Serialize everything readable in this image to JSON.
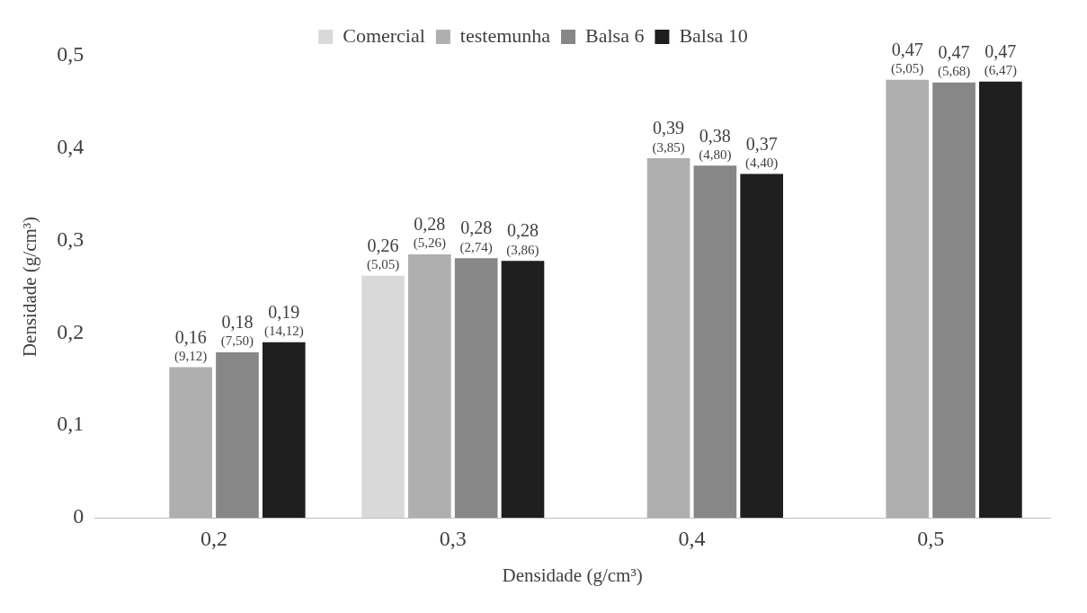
{
  "chart_data": {
    "type": "bar",
    "xlabel": "Densidade (g/cm³)",
    "ylabel": "Densidade (g/cm³)",
    "categories": [
      "0,2",
      "0,3",
      "0,4",
      "0,5"
    ],
    "series": [
      {
        "name": "Comercial",
        "color": "#d9d9d9",
        "values": [
          null,
          0.262,
          null,
          null
        ],
        "value_labels": [
          null,
          "0,26\n(5,05)",
          null,
          null
        ]
      },
      {
        "name": "testemunha",
        "color": "#afafaf",
        "values": [
          0.163,
          0.285,
          0.389,
          0.474
        ],
        "value_labels": [
          "0,16\n(9,12)",
          "0,28\n(5,26)",
          "0,39\n(3,85)",
          "0,47\n(5,05)"
        ]
      },
      {
        "name": "Balsa 6",
        "color": "#878787",
        "values": [
          0.179,
          0.281,
          0.381,
          0.471
        ],
        "value_labels": [
          "0,18\n(7,50)",
          "0,28\n(2,74)",
          "0,38\n(4,80)",
          "0,47\n(5,68)"
        ]
      },
      {
        "name": "Balsa 10",
        "color": "#1f1f1f",
        "values": [
          0.19,
          0.278,
          0.372,
          0.472
        ],
        "value_labels": [
          "0,19\n(14,12)",
          "0,28\n(3,86)",
          "0,37\n(4,40)",
          "0,47\n(6,47)"
        ]
      }
    ],
    "ylim": [
      0,
      0.5
    ],
    "yticks": [
      {
        "value": 0,
        "label": "0"
      },
      {
        "value": 0.1,
        "label": "0,1"
      },
      {
        "value": 0.2,
        "label": "0,2"
      },
      {
        "value": 0.3,
        "label": "0,3"
      },
      {
        "value": 0.4,
        "label": "0,4"
      },
      {
        "value": 0.5,
        "label": "0,5"
      }
    ],
    "grid": false,
    "legend": "top"
  }
}
